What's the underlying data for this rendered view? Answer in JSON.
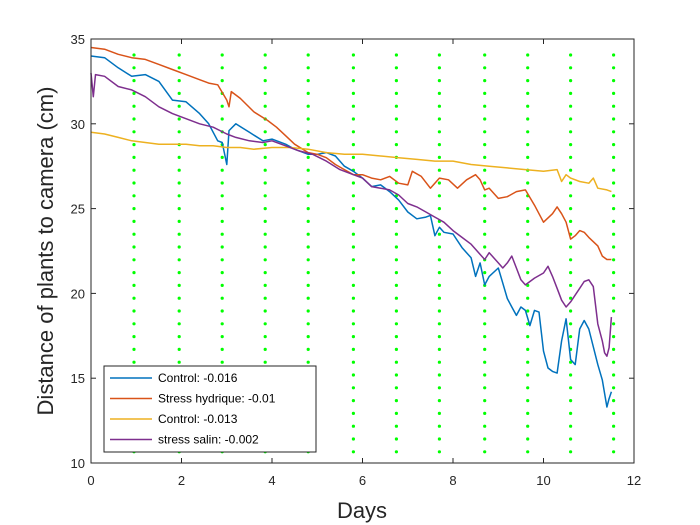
{
  "chart_data": {
    "type": "line",
    "title": "",
    "xlabel": "Days",
    "ylabel": "Distance of plants to camera (cm)",
    "xlim": [
      0,
      12
    ],
    "ylim": [
      10,
      35
    ],
    "xticks": [
      0,
      2,
      4,
      6,
      8,
      10,
      12
    ],
    "yticks": [
      10,
      15,
      20,
      25,
      30,
      35
    ],
    "grid": false,
    "legend_position": "bottom-left",
    "series": [
      {
        "name": "Control: -0.016",
        "color": "#0072BD",
        "points": [
          [
            0,
            34.0
          ],
          [
            0.3,
            33.9
          ],
          [
            0.6,
            33.3
          ],
          [
            0.9,
            32.8
          ],
          [
            1.2,
            32.9
          ],
          [
            1.5,
            32.5
          ],
          [
            1.8,
            31.4
          ],
          [
            2.1,
            31.3
          ],
          [
            2.4,
            30.6
          ],
          [
            2.6,
            30.0
          ],
          [
            2.8,
            29.0
          ],
          [
            2.9,
            28.9
          ],
          [
            3.0,
            27.6
          ],
          [
            3.05,
            29.6
          ],
          [
            3.2,
            30.0
          ],
          [
            3.5,
            29.5
          ],
          [
            3.8,
            29.0
          ],
          [
            4.0,
            29.1
          ],
          [
            4.3,
            28.8
          ],
          [
            4.5,
            28.5
          ],
          [
            4.8,
            28.2
          ],
          [
            5.0,
            28.2
          ],
          [
            5.2,
            28.3
          ],
          [
            5.4,
            28.1
          ],
          [
            5.6,
            27.5
          ],
          [
            5.8,
            27.2
          ],
          [
            6.0,
            26.8
          ],
          [
            6.2,
            26.3
          ],
          [
            6.4,
            26.4
          ],
          [
            6.6,
            26.0
          ],
          [
            6.8,
            25.5
          ],
          [
            7.0,
            24.8
          ],
          [
            7.2,
            24.4
          ],
          [
            7.4,
            24.5
          ],
          [
            7.5,
            24.6
          ],
          [
            7.6,
            23.4
          ],
          [
            7.7,
            23.9
          ],
          [
            7.8,
            23.6
          ],
          [
            8.0,
            23.5
          ],
          [
            8.2,
            22.7
          ],
          [
            8.4,
            22.1
          ],
          [
            8.5,
            21.0
          ],
          [
            8.6,
            21.8
          ],
          [
            8.7,
            20.5
          ],
          [
            8.8,
            21.0
          ],
          [
            9.0,
            21.5
          ],
          [
            9.1,
            20.6
          ],
          [
            9.2,
            19.7
          ],
          [
            9.3,
            19.2
          ],
          [
            9.4,
            18.7
          ],
          [
            9.5,
            19.2
          ],
          [
            9.6,
            19.0
          ],
          [
            9.7,
            18.1
          ],
          [
            9.8,
            19.0
          ],
          [
            9.9,
            18.9
          ],
          [
            10.0,
            16.6
          ],
          [
            10.1,
            15.6
          ],
          [
            10.2,
            15.4
          ],
          [
            10.3,
            15.3
          ],
          [
            10.4,
            17.2
          ],
          [
            10.5,
            18.5
          ],
          [
            10.6,
            16.1
          ],
          [
            10.7,
            15.8
          ],
          [
            10.8,
            17.9
          ],
          [
            10.9,
            18.4
          ],
          [
            11.0,
            17.9
          ],
          [
            11.2,
            15.8
          ],
          [
            11.3,
            14.9
          ],
          [
            11.4,
            13.3
          ],
          [
            11.45,
            13.8
          ],
          [
            11.5,
            14.2
          ]
        ]
      },
      {
        "name": "Stress hydrique: -0.01",
        "color": "#D95319",
        "points": [
          [
            0,
            34.5
          ],
          [
            0.3,
            34.4
          ],
          [
            0.6,
            34.1
          ],
          [
            0.9,
            33.9
          ],
          [
            1.2,
            33.8
          ],
          [
            1.5,
            33.5
          ],
          [
            1.8,
            33.2
          ],
          [
            2.1,
            32.9
          ],
          [
            2.4,
            32.6
          ],
          [
            2.6,
            32.4
          ],
          [
            2.8,
            32.3
          ],
          [
            3.0,
            31.4
          ],
          [
            3.05,
            31.0
          ],
          [
            3.1,
            31.9
          ],
          [
            3.3,
            31.5
          ],
          [
            3.6,
            30.7
          ],
          [
            3.9,
            30.2
          ],
          [
            4.1,
            29.8
          ],
          [
            4.3,
            29.3
          ],
          [
            4.5,
            28.8
          ],
          [
            4.8,
            28.3
          ],
          [
            5.0,
            28.2
          ],
          [
            5.2,
            28.0
          ],
          [
            5.4,
            27.6
          ],
          [
            5.6,
            27.3
          ],
          [
            5.8,
            27.0
          ],
          [
            6.0,
            27.0
          ],
          [
            6.2,
            26.8
          ],
          [
            6.4,
            26.7
          ],
          [
            6.6,
            26.9
          ],
          [
            6.8,
            26.5
          ],
          [
            7.0,
            26.4
          ],
          [
            7.1,
            27.2
          ],
          [
            7.3,
            26.9
          ],
          [
            7.5,
            26.2
          ],
          [
            7.7,
            26.8
          ],
          [
            7.9,
            26.7
          ],
          [
            8.1,
            26.2
          ],
          [
            8.3,
            26.7
          ],
          [
            8.5,
            27.0
          ],
          [
            8.6,
            26.7
          ],
          [
            8.7,
            26.1
          ],
          [
            8.8,
            26.2
          ],
          [
            9.0,
            25.6
          ],
          [
            9.2,
            25.7
          ],
          [
            9.4,
            26.0
          ],
          [
            9.6,
            26.1
          ],
          [
            9.8,
            25.2
          ],
          [
            10.0,
            24.2
          ],
          [
            10.2,
            24.7
          ],
          [
            10.3,
            25.1
          ],
          [
            10.4,
            24.7
          ],
          [
            10.5,
            24.2
          ],
          [
            10.6,
            23.2
          ],
          [
            10.7,
            23.4
          ],
          [
            10.8,
            23.7
          ],
          [
            10.9,
            23.6
          ],
          [
            11.0,
            23.3
          ],
          [
            11.2,
            22.8
          ],
          [
            11.3,
            22.2
          ],
          [
            11.4,
            22.0
          ],
          [
            11.5,
            22.0
          ]
        ]
      },
      {
        "name": "Control: -0.013",
        "color": "#EDB120",
        "points": [
          [
            0,
            29.5
          ],
          [
            0.3,
            29.4
          ],
          [
            0.6,
            29.2
          ],
          [
            0.9,
            29.0
          ],
          [
            1.2,
            28.9
          ],
          [
            1.5,
            28.8
          ],
          [
            1.8,
            28.8
          ],
          [
            2.1,
            28.8
          ],
          [
            2.4,
            28.7
          ],
          [
            2.7,
            28.7
          ],
          [
            3.0,
            28.6
          ],
          [
            3.3,
            28.6
          ],
          [
            3.6,
            28.5
          ],
          [
            4.0,
            28.6
          ],
          [
            4.4,
            28.6
          ],
          [
            4.8,
            28.5
          ],
          [
            5.2,
            28.3
          ],
          [
            5.6,
            28.2
          ],
          [
            6.0,
            28.2
          ],
          [
            6.4,
            28.1
          ],
          [
            6.8,
            28.0
          ],
          [
            7.2,
            27.9
          ],
          [
            7.6,
            27.8
          ],
          [
            8.0,
            27.8
          ],
          [
            8.4,
            27.6
          ],
          [
            8.8,
            27.5
          ],
          [
            9.2,
            27.4
          ],
          [
            9.6,
            27.3
          ],
          [
            10.0,
            27.2
          ],
          [
            10.3,
            27.3
          ],
          [
            10.4,
            26.6
          ],
          [
            10.5,
            27.0
          ],
          [
            10.6,
            26.8
          ],
          [
            10.8,
            26.6
          ],
          [
            11.0,
            26.5
          ],
          [
            11.1,
            26.8
          ],
          [
            11.2,
            26.2
          ],
          [
            11.4,
            26.1
          ],
          [
            11.5,
            26.0
          ]
        ]
      },
      {
        "name": "stress salin: -0.002",
        "color": "#7E2F8E",
        "points": [
          [
            0,
            33.0
          ],
          [
            0.05,
            31.6
          ],
          [
            0.1,
            32.9
          ],
          [
            0.3,
            32.8
          ],
          [
            0.6,
            32.2
          ],
          [
            0.9,
            32.0
          ],
          [
            1.2,
            31.6
          ],
          [
            1.5,
            31.0
          ],
          [
            1.8,
            30.6
          ],
          [
            2.1,
            30.3
          ],
          [
            2.4,
            30.0
          ],
          [
            2.7,
            29.8
          ],
          [
            3.0,
            29.4
          ],
          [
            3.2,
            29.2
          ],
          [
            3.5,
            29.0
          ],
          [
            3.8,
            28.9
          ],
          [
            4.0,
            29.0
          ],
          [
            4.3,
            28.7
          ],
          [
            4.6,
            28.4
          ],
          [
            4.9,
            28.2
          ],
          [
            5.2,
            27.8
          ],
          [
            5.5,
            27.3
          ],
          [
            5.8,
            27.0
          ],
          [
            6.0,
            26.8
          ],
          [
            6.2,
            26.3
          ],
          [
            6.4,
            26.2
          ],
          [
            6.6,
            26.1
          ],
          [
            6.8,
            25.8
          ],
          [
            7.0,
            25.3
          ],
          [
            7.2,
            25.1
          ],
          [
            7.4,
            24.8
          ],
          [
            7.6,
            24.5
          ],
          [
            7.8,
            24.2
          ],
          [
            8.0,
            23.7
          ],
          [
            8.2,
            23.3
          ],
          [
            8.4,
            22.9
          ],
          [
            8.6,
            22.3
          ],
          [
            8.7,
            22.0
          ],
          [
            8.8,
            22.4
          ],
          [
            9.0,
            21.8
          ],
          [
            9.1,
            21.5
          ],
          [
            9.2,
            21.8
          ],
          [
            9.3,
            22.2
          ],
          [
            9.4,
            21.5
          ],
          [
            9.5,
            20.8
          ],
          [
            9.6,
            20.5
          ],
          [
            9.8,
            20.9
          ],
          [
            10.0,
            21.2
          ],
          [
            10.1,
            21.6
          ],
          [
            10.2,
            21.0
          ],
          [
            10.3,
            20.3
          ],
          [
            10.4,
            19.6
          ],
          [
            10.5,
            19.2
          ],
          [
            10.6,
            19.5
          ],
          [
            10.7,
            19.9
          ],
          [
            10.8,
            20.3
          ],
          [
            10.9,
            20.7
          ],
          [
            11.0,
            20.8
          ],
          [
            11.1,
            20.4
          ],
          [
            11.2,
            18.2
          ],
          [
            11.3,
            17.2
          ],
          [
            11.35,
            16.5
          ],
          [
            11.4,
            16.3
          ],
          [
            11.45,
            16.8
          ],
          [
            11.5,
            18.6
          ]
        ]
      }
    ],
    "green_marker_columns_days": [
      0.95,
      1.95,
      2.9,
      3.85,
      4.8,
      5.8,
      6.75,
      7.7,
      8.7,
      9.65,
      10.6,
      11.55
    ],
    "green_marker_color": "#00FF00"
  }
}
